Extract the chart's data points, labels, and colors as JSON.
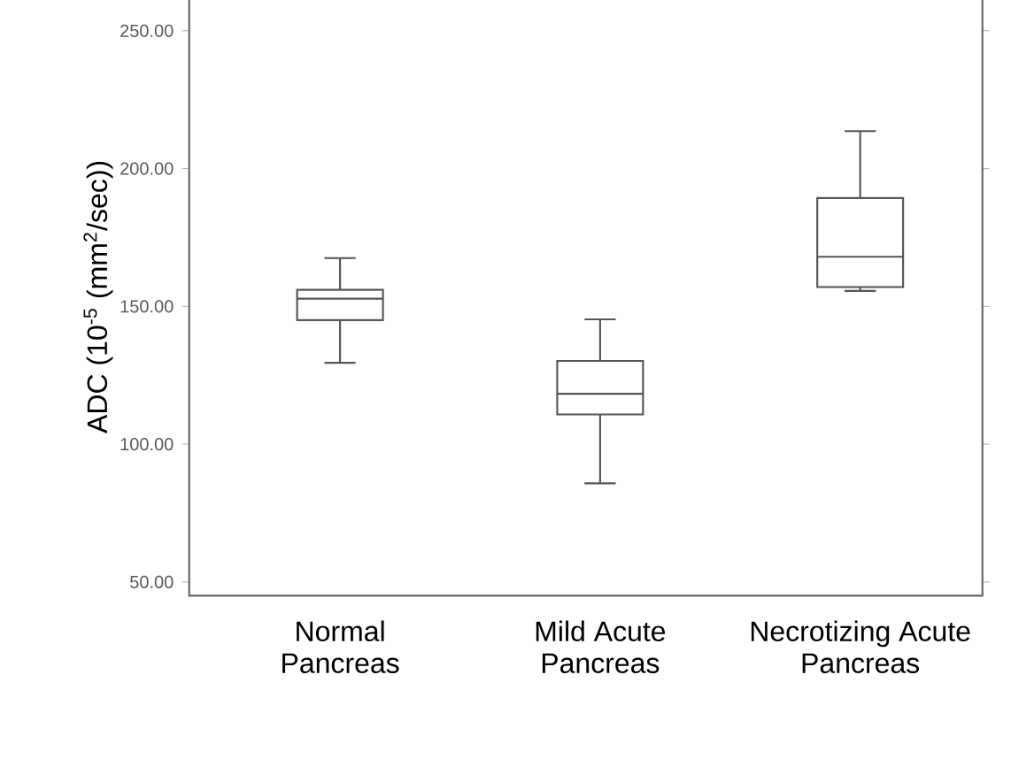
{
  "chart_data": {
    "type": "box",
    "ylabel": "ADC (10$^{-5}$ (mm$^{2}$/sec))",
    "categories": [
      "Normal Pancreas",
      "Mild Acute Pancreas",
      "Necrotizing Acute Pancreas"
    ],
    "boxes": [
      {
        "low": 129.5,
        "q1": 145,
        "median": 152.8,
        "q3": 156,
        "high": 167.5
      },
      {
        "low": 85.8,
        "q1": 110.8,
        "median": 118.3,
        "q3": 130.2,
        "high": 145.3
      },
      {
        "low": 155.6,
        "q1": 157,
        "median": 168,
        "q3": 189.3,
        "high": 213.6
      }
    ],
    "color": "#555555",
    "ylim": [
      45,
      262
    ],
    "yticks": [
      {
        "value": 50,
        "label": "50.00"
      },
      {
        "value": 100,
        "label": "100.00"
      },
      {
        "value": 150,
        "label": "150.00"
      },
      {
        "value": 200,
        "label": "200.00"
      },
      {
        "value": 250,
        "label": "250.00"
      }
    ]
  }
}
